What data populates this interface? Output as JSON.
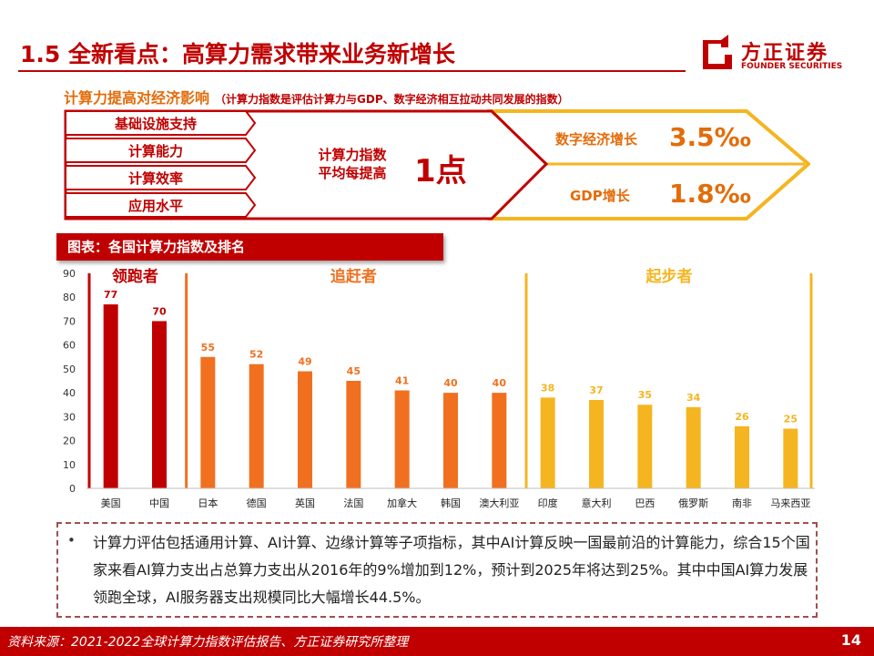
{
  "header": {
    "title": "1.5 全新看点：高算力需求带来业务新增长",
    "logo_cn": "方正证券",
    "logo_en": "FOUNDER SECURITIES"
  },
  "impact": {
    "title": "计算力提高对经济影响",
    "note": "（计算力指数是评估计算力与GDP、数字经济相互拉动共同发展的指数）",
    "factors": [
      "基础设施支持",
      "计算能力",
      "计算效率",
      "应用水平"
    ],
    "center_line1": "计算力指数",
    "center_line2": "平均每提高",
    "center_value": "1点",
    "outputs": [
      {
        "label": "数字经济增长",
        "value": "3.5‰"
      },
      {
        "label": "GDP增长",
        "value": "1.8‰"
      }
    ]
  },
  "chart_title": "图表：各国计算力指数及排名",
  "chart_data": {
    "type": "bar",
    "categories": [
      "美国",
      "中国",
      "日本",
      "德国",
      "英国",
      "法国",
      "加拿大",
      "韩国",
      "澳大利亚",
      "印度",
      "意大利",
      "巴西",
      "俄罗斯",
      "南非",
      "马来西亚"
    ],
    "values": [
      77,
      70,
      55,
      52,
      49,
      45,
      41,
      40,
      40,
      38,
      37,
      35,
      34,
      26,
      25
    ],
    "ylim": [
      0,
      90
    ],
    "yticks": [
      0,
      10,
      20,
      30,
      40,
      50,
      60,
      70,
      80,
      90
    ],
    "groups": [
      {
        "name": "领跑者",
        "start": 0,
        "end": 1,
        "color": "#c00000"
      },
      {
        "name": "追赶者",
        "start": 2,
        "end": 8,
        "color": "#f07020"
      },
      {
        "name": "起步者",
        "start": 9,
        "end": 14,
        "color": "#f5b520"
      }
    ],
    "grid": false
  },
  "bullet": "计算力评估包括通用计算、AI计算、边缘计算等子项指标，其中AI计算反映一国最前沿的计算能力，综合15个国家来看AI算力支出占总算力支出从2016年的9%增加到12%，预计到2025年将达到25%。其中中国AI算力发展领跑全球，AI服务器支出规模同比大幅增长44.5%。",
  "footer": {
    "source": "资料来源：2021-2022全球计算力指数评估报告、方正证券研究所整理",
    "page": "14"
  }
}
